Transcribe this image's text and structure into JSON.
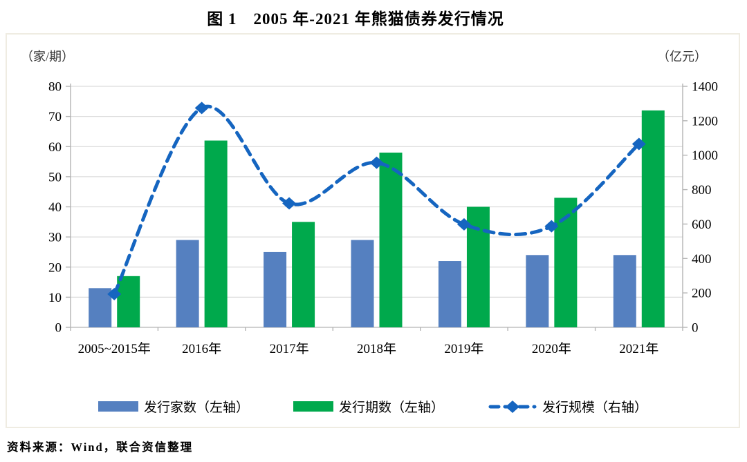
{
  "title": "图 1　2005 年-2021 年熊猫债券发行情况",
  "source": "资料来源：Wind，联合资信整理",
  "chart_data": {
    "type": "bar+line",
    "title": "图 1　2005 年-2021 年熊猫债券发行情况",
    "categories": [
      "2005~2015年",
      "2016年",
      "2017年",
      "2018年",
      "2019年",
      "2020年",
      "2021年"
    ],
    "series": [
      {
        "name": "发行家数（左轴）",
        "type": "bar",
        "axis": "left",
        "color": "#5580c0",
        "values": [
          13,
          29,
          25,
          29,
          22,
          24,
          24
        ]
      },
      {
        "name": "发行期数（左轴）",
        "type": "bar",
        "axis": "left",
        "color": "#00a94c",
        "values": [
          17,
          62,
          35,
          58,
          40,
          43,
          72
        ]
      },
      {
        "name": "发行规模（右轴）",
        "type": "line",
        "axis": "right",
        "color": "#1565c0",
        "dashed": true,
        "marker": "diamond",
        "values": [
          193,
          1274,
          720,
          956,
          598,
          587,
          1065
        ]
      }
    ],
    "left_axis": {
      "unit": "（家/期）",
      "min": 0,
      "max": 80,
      "step": 10,
      "ticks": [
        0,
        10,
        20,
        30,
        40,
        50,
        60,
        70,
        80
      ]
    },
    "right_axis": {
      "unit": "（亿元）",
      "min": 0,
      "max": 1400,
      "step": 200,
      "ticks": [
        0,
        200,
        400,
        600,
        800,
        1000,
        1200,
        1400
      ]
    },
    "grid": true,
    "legend_position": "bottom",
    "colors": {
      "grid": "#dcdcdc",
      "axis": "#b3b3b3",
      "panel_border": "#efece2"
    }
  }
}
